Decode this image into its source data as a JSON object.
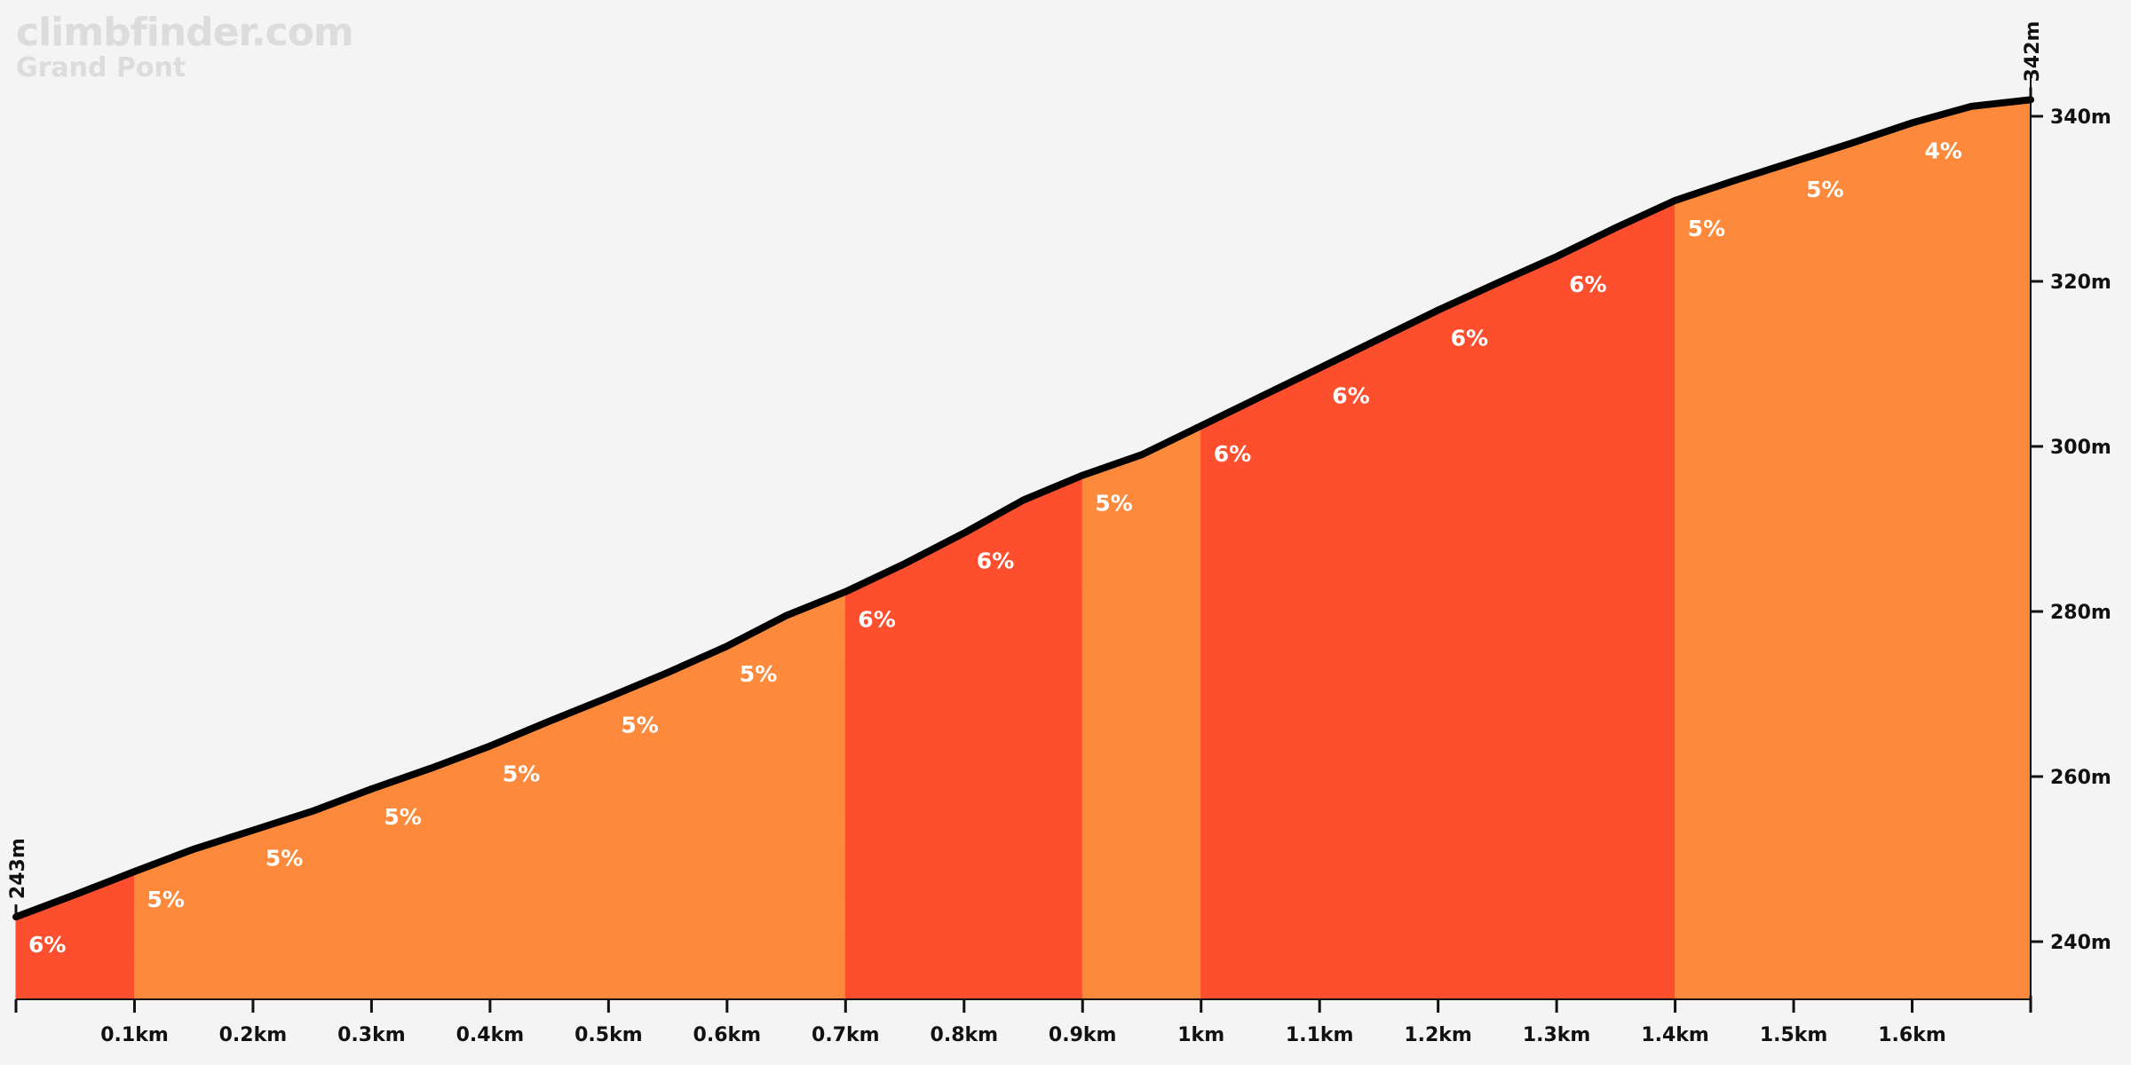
{
  "brand": {
    "site": "climbfinder.com",
    "climb_name": "Grand Pont"
  },
  "colors": {
    "background": "#f4f4f4",
    "grade_5": "#fd8a3c",
    "grade_4": "#fd8a3c",
    "grade_6": "#fd4e2d",
    "profile_line": "#000000",
    "brand_text": "#dcdcdc"
  },
  "chart_data": {
    "type": "area",
    "title": "",
    "xlabel": "",
    "ylabel": "",
    "xlim": [
      0,
      1.7
    ],
    "ylim": [
      233,
      345
    ],
    "x_unit": "km",
    "y_unit": "m",
    "y_ticks": [
      240,
      260,
      280,
      300,
      320,
      340
    ],
    "y_tick_labels": [
      "240m",
      "260m",
      "280m",
      "300m",
      "320m",
      "340m"
    ],
    "x_ticks": [
      0.1,
      0.2,
      0.3,
      0.4,
      0.5,
      0.6,
      0.7,
      0.8,
      0.9,
      1.0,
      1.1,
      1.2,
      1.3,
      1.4,
      1.5,
      1.6
    ],
    "x_tick_labels": [
      "0.1km",
      "0.2km",
      "0.3km",
      "0.4km",
      "0.5km",
      "0.6km",
      "0.7km",
      "0.8km",
      "0.9km",
      "1km",
      "1.1km",
      "1.2km",
      "1.3km",
      "1.4km",
      "1.5km",
      "1.6km"
    ],
    "start_label": "243m",
    "end_label": "342m",
    "profile": [
      [
        0.0,
        243
      ],
      [
        0.05,
        245.7
      ],
      [
        0.1,
        248.5
      ],
      [
        0.15,
        251.2
      ],
      [
        0.2,
        253.5
      ],
      [
        0.25,
        255.8
      ],
      [
        0.3,
        258.5
      ],
      [
        0.35,
        261.0
      ],
      [
        0.4,
        263.7
      ],
      [
        0.45,
        266.7
      ],
      [
        0.5,
        269.6
      ],
      [
        0.55,
        272.6
      ],
      [
        0.6,
        275.8
      ],
      [
        0.65,
        279.5
      ],
      [
        0.7,
        282.4
      ],
      [
        0.75,
        285.8
      ],
      [
        0.8,
        289.5
      ],
      [
        0.85,
        293.5
      ],
      [
        0.9,
        296.5
      ],
      [
        0.95,
        299.0
      ],
      [
        1.0,
        302.5
      ],
      [
        1.05,
        306.0
      ],
      [
        1.1,
        309.5
      ],
      [
        1.15,
        313.0
      ],
      [
        1.2,
        316.5
      ],
      [
        1.25,
        319.8
      ],
      [
        1.3,
        323.0
      ],
      [
        1.35,
        326.5
      ],
      [
        1.4,
        329.8
      ],
      [
        1.45,
        332.2
      ],
      [
        1.5,
        334.5
      ],
      [
        1.55,
        336.8
      ],
      [
        1.6,
        339.2
      ],
      [
        1.65,
        341.2
      ],
      [
        1.7,
        342
      ]
    ],
    "segments": [
      {
        "start": 0.0,
        "end": 0.1,
        "grade": "6%"
      },
      {
        "start": 0.1,
        "end": 0.2,
        "grade": "5%"
      },
      {
        "start": 0.2,
        "end": 0.3,
        "grade": "5%"
      },
      {
        "start": 0.3,
        "end": 0.4,
        "grade": "5%"
      },
      {
        "start": 0.4,
        "end": 0.5,
        "grade": "5%"
      },
      {
        "start": 0.5,
        "end": 0.6,
        "grade": "5%"
      },
      {
        "start": 0.6,
        "end": 0.7,
        "grade": "5%"
      },
      {
        "start": 0.7,
        "end": 0.8,
        "grade": "6%"
      },
      {
        "start": 0.8,
        "end": 0.9,
        "grade": "6%"
      },
      {
        "start": 0.9,
        "end": 1.0,
        "grade": "5%"
      },
      {
        "start": 1.0,
        "end": 1.1,
        "grade": "6%"
      },
      {
        "start": 1.1,
        "end": 1.2,
        "grade": "6%"
      },
      {
        "start": 1.2,
        "end": 1.3,
        "grade": "6%"
      },
      {
        "start": 1.3,
        "end": 1.4,
        "grade": "6%"
      },
      {
        "start": 1.4,
        "end": 1.5,
        "grade": "5%"
      },
      {
        "start": 1.5,
        "end": 1.6,
        "grade": "5%"
      },
      {
        "start": 1.6,
        "end": 1.7,
        "grade": "4%"
      }
    ]
  }
}
